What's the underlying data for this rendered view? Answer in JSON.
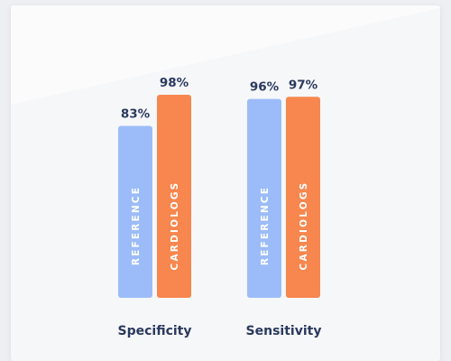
{
  "chart_data": {
    "type": "bar",
    "categories": [
      "Specificity",
      "Sensitivity"
    ],
    "series": [
      {
        "name": "REFERENCE",
        "values": [
          83,
          96
        ],
        "color": "#9cbcf9"
      },
      {
        "name": "CARDIOLOGS",
        "values": [
          98,
          97
        ],
        "color": "#f7874e"
      }
    ],
    "value_labels": [
      [
        "83%",
        "96%"
      ],
      [
        "98%",
        "97%"
      ]
    ],
    "title": "",
    "xlabel": "",
    "ylabel": "",
    "ylim": [
      0,
      100
    ],
    "grid": false,
    "legend": "none (series names written inside bars)"
  },
  "colors": {
    "background": "#eeeff3",
    "card": "#f6f7f9",
    "text": "#2a3a5e"
  }
}
